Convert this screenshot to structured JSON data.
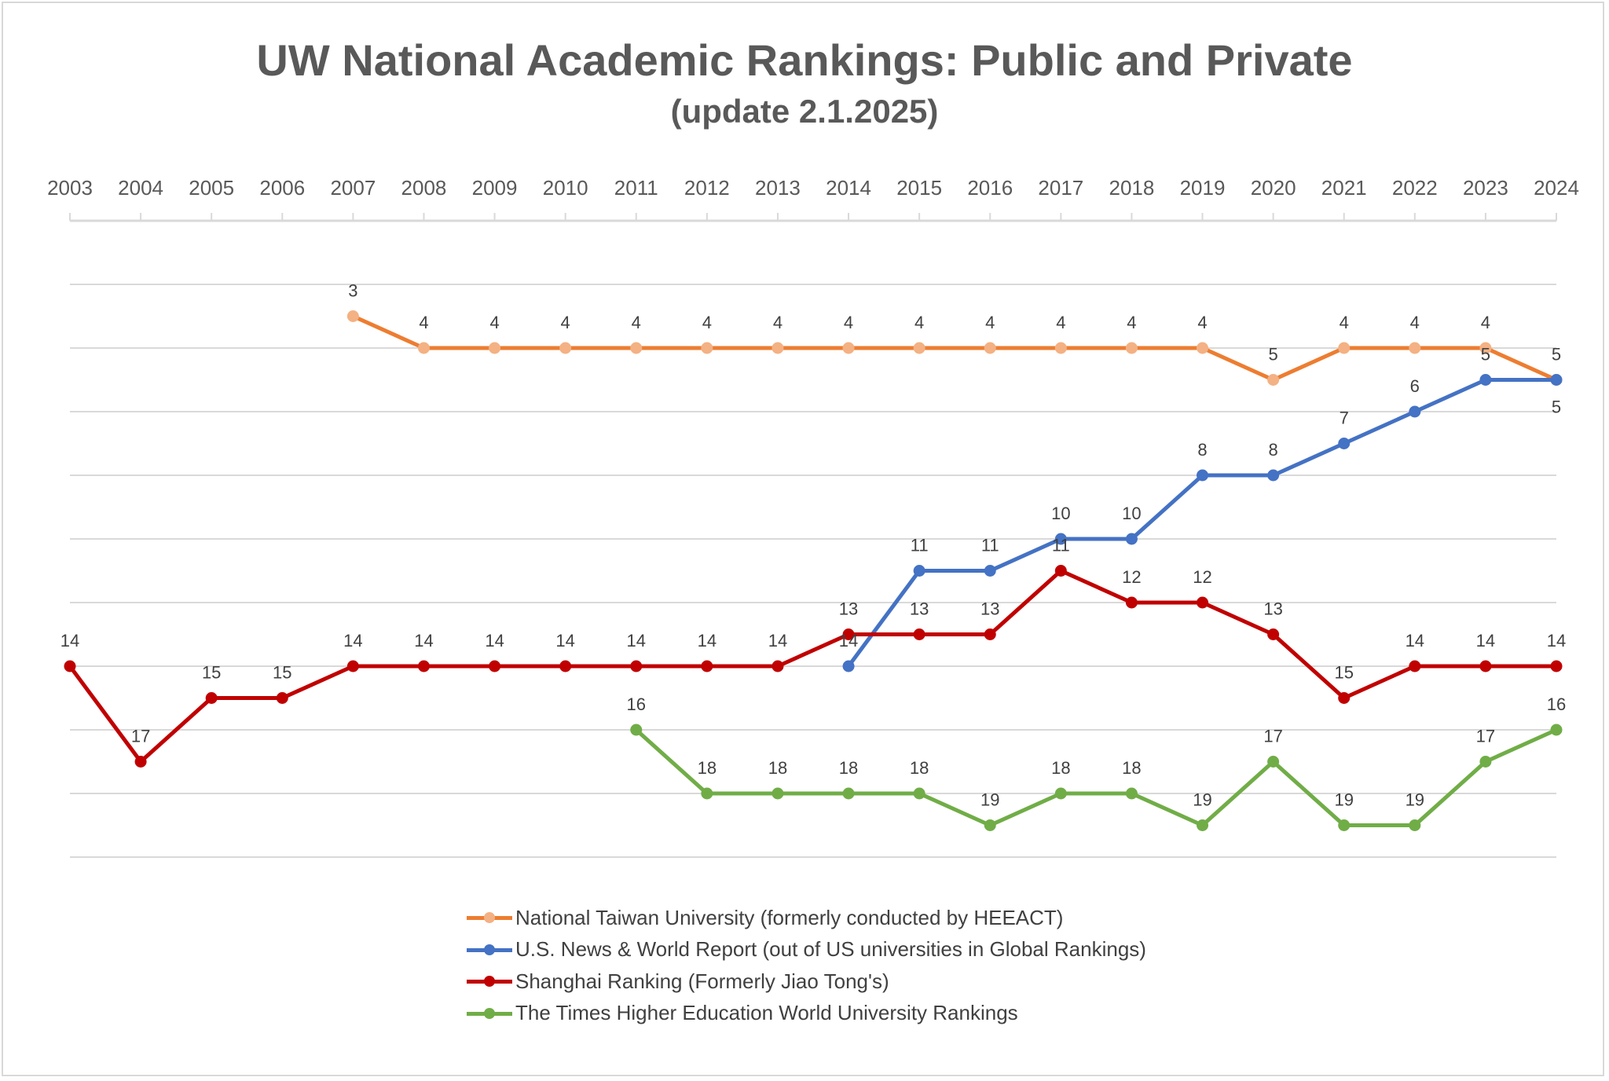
{
  "chart_data": {
    "type": "line",
    "title": "UW National Academic Rankings: Public and Private",
    "subtitle": "(update 2.1.2025)",
    "xlabel": "",
    "ylabel": "",
    "x": [
      2003,
      2004,
      2005,
      2006,
      2007,
      2008,
      2009,
      2010,
      2011,
      2012,
      2013,
      2014,
      2015,
      2016,
      2017,
      2018,
      2019,
      2020,
      2021,
      2022,
      2023,
      2024
    ],
    "ylim": [
      0,
      20
    ],
    "y_reversed": true,
    "y_axis_labels_shown": false,
    "x_axis_position": "top",
    "grid": true,
    "grid_step": 2,
    "legend_position": "bottom",
    "series": [
      {
        "name": "National Taiwan University (formerly conducted by HEEACT)",
        "color": "#ED7D31",
        "marker_color": "#F4B183",
        "values": [
          null,
          null,
          null,
          null,
          3,
          4,
          4,
          4,
          4,
          4,
          4,
          4,
          4,
          4,
          4,
          4,
          4,
          5,
          4,
          4,
          4,
          5
        ]
      },
      {
        "name": "U.S. News & World Report (out of US universities in Global Rankings)",
        "color": "#4472C4",
        "marker_color": "#4472C4",
        "values": [
          null,
          null,
          null,
          null,
          null,
          null,
          null,
          null,
          null,
          null,
          null,
          14,
          11,
          11,
          10,
          10,
          8,
          8,
          7,
          6,
          5,
          5
        ]
      },
      {
        "name": "Shanghai Ranking (Formerly Jiao Tong's)",
        "color": "#C00000",
        "marker_color": "#C00000",
        "values": [
          14,
          17,
          15,
          15,
          14,
          14,
          14,
          14,
          14,
          14,
          14,
          13,
          13,
          13,
          11,
          12,
          12,
          13,
          15,
          14,
          14,
          14
        ]
      },
      {
        "name": "The Times Higher Education World University Rankings",
        "color": "#70AD47",
        "marker_color": "#70AD47",
        "values": [
          null,
          null,
          null,
          null,
          null,
          null,
          null,
          null,
          16,
          18,
          18,
          18,
          18,
          19,
          18,
          18,
          19,
          17,
          19,
          19,
          17,
          16
        ]
      }
    ]
  }
}
